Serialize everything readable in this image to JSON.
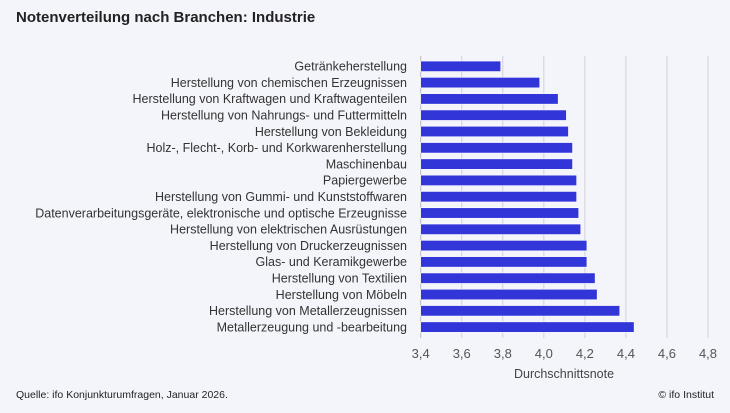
{
  "title": "Notenverteilung nach Branchen: Industrie",
  "source": "Quelle: ifo Konjunkturumfragen, Januar 2026.",
  "copyright": "© ifo Institut",
  "colors": {
    "bar": "#3236d9",
    "background": "#f4f5fa",
    "grid": "#cfd0d8"
  },
  "chart_data": {
    "type": "bar",
    "orientation": "horizontal",
    "title": "Notenverteilung nach Branchen: Industrie",
    "xlabel": "Durchschnittsnote",
    "ylabel": "",
    "xlim": [
      3.4,
      4.8
    ],
    "xticks": [
      "3,4",
      "3,6",
      "3,8",
      "4,0",
      "4,2",
      "4,4",
      "4,6",
      "4,8"
    ],
    "grid": true,
    "categories": [
      "Getränkeherstellung",
      "Herstellung von chemischen Erzeugnissen",
      "Herstellung von Kraftwagen und Kraftwagenteilen",
      "Herstellung von Nahrungs- und Futtermitteln",
      "Herstellung von Bekleidung",
      "Holz-,  Flecht-,  Korb- und Korkwarenherstellung",
      "Maschinenbau",
      "Papiergewerbe",
      "Herstellung von Gummi- und Kunststoffwaren",
      "Datenverarbeitungsgeräte, elektronische und optische Erzeugnisse",
      "Herstellung von elektrischen Ausrüstungen",
      "Herstellung von Druckerzeugnissen",
      "Glas- und Keramikgewerbe",
      "Herstellung von Textilien",
      "Herstellung von Möbeln",
      "Herstellung von Metallerzeugnissen",
      "Metallerzeugung und -bearbeitung"
    ],
    "values": [
      3.79,
      3.98,
      4.07,
      4.11,
      4.12,
      4.14,
      4.14,
      4.16,
      4.16,
      4.17,
      4.18,
      4.21,
      4.21,
      4.25,
      4.26,
      4.37,
      4.44
    ]
  }
}
